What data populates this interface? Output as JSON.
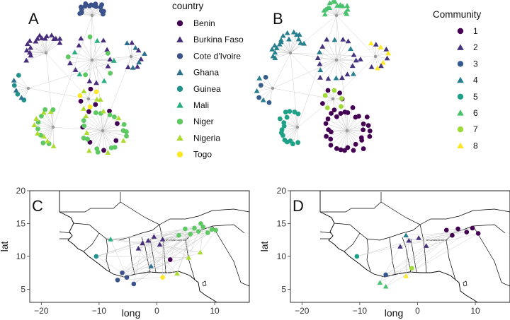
{
  "panels": {
    "a": {
      "letter": "A"
    },
    "b": {
      "letter": "B"
    },
    "c": {
      "letter": "C"
    },
    "d": {
      "letter": "D"
    }
  },
  "legend_country": {
    "title": "country",
    "items": [
      {
        "label": "Benin",
        "color": "#440154",
        "shape": "circle"
      },
      {
        "label": "Burkina Faso",
        "color": "#472d7b",
        "shape": "triangle"
      },
      {
        "label": "Cote d'Ivoire",
        "color": "#3b528b",
        "shape": "circle"
      },
      {
        "label": "Ghana",
        "color": "#2c728e",
        "shape": "triangle"
      },
      {
        "label": "Guinea",
        "color": "#21918c",
        "shape": "circle"
      },
      {
        "label": "Mali",
        "color": "#28ae80",
        "shape": "triangle"
      },
      {
        "label": "Niger",
        "color": "#5ec962",
        "shape": "circle"
      },
      {
        "label": "Nigeria",
        "color": "#addc30",
        "shape": "triangle"
      },
      {
        "label": "Togo",
        "color": "#fde725",
        "shape": "circle"
      }
    ]
  },
  "legend_community": {
    "title": "Community",
    "items": [
      {
        "label": "1",
        "color": "#440154",
        "shape": "circle"
      },
      {
        "label": "2",
        "color": "#46337e",
        "shape": "triangle"
      },
      {
        "label": "3",
        "color": "#365c8d",
        "shape": "circle"
      },
      {
        "label": "4",
        "color": "#277f8e",
        "shape": "triangle"
      },
      {
        "label": "5",
        "color": "#1fa187",
        "shape": "circle"
      },
      {
        "label": "6",
        "color": "#4ac16d",
        "shape": "triangle"
      },
      {
        "label": "7",
        "color": "#a0da39",
        "shape": "circle"
      },
      {
        "label": "8",
        "color": "#fde725",
        "shape": "triangle"
      }
    ]
  },
  "chart_data": [
    {
      "type": "network",
      "panel": "A",
      "color_by": "country",
      "clusters": [
        {
          "country": "Cote d'Ivoire",
          "nodes": 18
        },
        {
          "country": "Burkina Faso",
          "nodes": 40
        },
        {
          "country": "Ghana",
          "nodes": 10
        },
        {
          "country": "Guinea",
          "nodes": 12
        },
        {
          "country": "Mali",
          "nodes": 4
        },
        {
          "country": "Niger",
          "nodes": 45
        },
        {
          "country": "Nigeria",
          "nodes": 28
        },
        {
          "country": "Benin",
          "nodes": 8
        },
        {
          "country": "Togo",
          "nodes": 3
        }
      ]
    },
    {
      "type": "network",
      "panel": "B",
      "color_by": "Community",
      "clusters": [
        {
          "community": "1",
          "nodes": 60
        },
        {
          "community": "2",
          "nodes": 42
        },
        {
          "community": "3",
          "nodes": 8
        },
        {
          "community": "4",
          "nodes": 14
        },
        {
          "community": "5",
          "nodes": 20
        },
        {
          "community": "6",
          "nodes": 18
        },
        {
          "community": "7",
          "nodes": 6
        },
        {
          "community": "8",
          "nodes": 8
        }
      ]
    },
    {
      "type": "scatter",
      "panel": "C",
      "color_by": "country",
      "xlabel": "long",
      "ylabel": "lat",
      "xlim": [
        -22,
        16
      ],
      "ylim": [
        3,
        20
      ],
      "xticks": [
        -20,
        -10,
        0,
        10
      ],
      "yticks": [
        5,
        10,
        15,
        20
      ],
      "points": [
        {
          "country": "Niger",
          "x": 6.5,
          "y": 14.3
        },
        {
          "country": "Niger",
          "x": 7.2,
          "y": 13.8
        },
        {
          "country": "Niger",
          "x": 8.0,
          "y": 14.5
        },
        {
          "country": "Niger",
          "x": 8.8,
          "y": 13.6
        },
        {
          "country": "Niger",
          "x": 9.5,
          "y": 14.1
        },
        {
          "country": "Niger",
          "x": 5.8,
          "y": 13.4
        },
        {
          "country": "Niger",
          "x": 4.9,
          "y": 14.2
        },
        {
          "country": "Niger",
          "x": 10.2,
          "y": 14.0
        },
        {
          "country": "Niger",
          "x": 7.6,
          "y": 15.0
        },
        {
          "country": "Niger",
          "x": 3.8,
          "y": 13.2
        },
        {
          "country": "Burkina Faso",
          "x": -1.5,
          "y": 12.4
        },
        {
          "country": "Burkina Faso",
          "x": -0.5,
          "y": 13.0
        },
        {
          "country": "Burkina Faso",
          "x": 0.5,
          "y": 11.8
        },
        {
          "country": "Burkina Faso",
          "x": -2.5,
          "y": 12.0
        },
        {
          "country": "Burkina Faso",
          "x": 1.0,
          "y": 12.6
        },
        {
          "country": "Burkina Faso",
          "x": -3.2,
          "y": 11.2
        },
        {
          "country": "Cote d'Ivoire",
          "x": -6.0,
          "y": 7.5
        },
        {
          "country": "Cote d'Ivoire",
          "x": -5.2,
          "y": 6.8
        },
        {
          "country": "Cote d'Ivoire",
          "x": -4.0,
          "y": 5.8
        },
        {
          "country": "Cote d'Ivoire",
          "x": -6.8,
          "y": 6.4
        },
        {
          "country": "Nigeria",
          "x": 3.5,
          "y": 7.4
        },
        {
          "country": "Nigeria",
          "x": 5.5,
          "y": 9.8
        },
        {
          "country": "Nigeria",
          "x": 7.5,
          "y": 10.6
        },
        {
          "country": "Benin",
          "x": 2.3,
          "y": 9.5
        },
        {
          "country": "Togo",
          "x": 1.0,
          "y": 6.8
        },
        {
          "country": "Ghana",
          "x": -1.0,
          "y": 8.5
        },
        {
          "country": "Guinea",
          "x": -10.5,
          "y": 10.0
        },
        {
          "country": "Mali",
          "x": -8.0,
          "y": 12.6
        }
      ]
    },
    {
      "type": "scatter",
      "panel": "D",
      "color_by": "Community",
      "xlabel": "long",
      "ylabel": "lat",
      "xlim": [
        -22,
        16
      ],
      "ylim": [
        3,
        20
      ],
      "xticks": [
        -20,
        -10,
        0,
        10
      ],
      "yticks": [
        5,
        10,
        15,
        20
      ],
      "points": [
        {
          "community": "1",
          "x": 7.0,
          "y": 14.2
        },
        {
          "community": "1",
          "x": 8.5,
          "y": 13.7
        },
        {
          "community": "1",
          "x": 9.5,
          "y": 14.3
        },
        {
          "community": "1",
          "x": 6.0,
          "y": 13.2
        },
        {
          "community": "1",
          "x": 10.5,
          "y": 13.5
        },
        {
          "community": "1",
          "x": 5.0,
          "y": 14.0
        },
        {
          "community": "2",
          "x": -1.5,
          "y": 12.4
        },
        {
          "community": "2",
          "x": 0.2,
          "y": 12.8
        },
        {
          "community": "2",
          "x": -3.0,
          "y": 11.5
        },
        {
          "community": "2",
          "x": 1.5,
          "y": 11.6
        },
        {
          "community": "3",
          "x": -5.5,
          "y": 7.2
        },
        {
          "community": "4",
          "x": -2.0,
          "y": 13.2
        },
        {
          "community": "5",
          "x": -10.5,
          "y": 10.0
        },
        {
          "community": "6",
          "x": -6.5,
          "y": 6.0
        },
        {
          "community": "6",
          "x": -5.5,
          "y": 5.4
        },
        {
          "community": "7",
          "x": -1.0,
          "y": 8.2
        },
        {
          "community": "8",
          "x": -2.0,
          "y": 7.0
        }
      ]
    }
  ]
}
